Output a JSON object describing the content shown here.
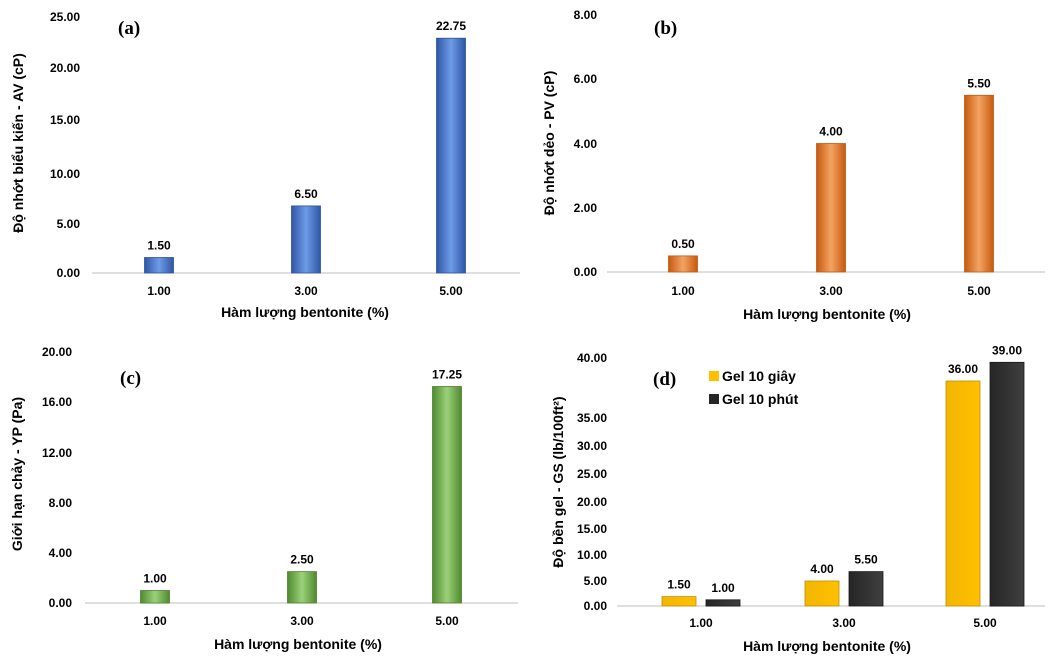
{
  "chart_data": [
    {
      "panel": "(a)",
      "type": "bar",
      "categories": [
        "1.00",
        "3.00",
        "5.00"
      ],
      "series": [
        {
          "values": [
            1.5,
            6.5,
            22.75
          ],
          "color": "#4472C4"
        }
      ],
      "data_labels": [
        "1.50",
        "6.50",
        "22.75"
      ],
      "xlabel": "Hàm lượng bentonite (%)",
      "ylabel": "Độ nhớt biểu kiến - AV (cP)",
      "ylim": [
        0,
        25
      ],
      "yticks": [
        "0.00",
        "5.00",
        "10.00",
        "15.00",
        "20.00",
        "25.00"
      ],
      "grid": false
    },
    {
      "panel": "(b)",
      "type": "bar",
      "categories": [
        "1.00",
        "3.00",
        "5.00"
      ],
      "series": [
        {
          "values": [
            0.5,
            4.0,
            5.5
          ],
          "color": "#ED7D31"
        }
      ],
      "data_labels": [
        "0.50",
        "4.00",
        "5.50"
      ],
      "xlabel": "Hàm lượng bentonite (%)",
      "ylabel": "Độ nhớt dẻo - PV (cP)",
      "ylim": [
        0,
        8
      ],
      "yticks": [
        "0.00",
        "2.00",
        "4.00",
        "6.00",
        "8.00"
      ],
      "grid": false
    },
    {
      "panel": "(c)",
      "type": "bar",
      "categories": [
        "1.00",
        "3.00",
        "5.00"
      ],
      "series": [
        {
          "values": [
            1.0,
            2.5,
            17.25
          ],
          "color": "#70AD47"
        }
      ],
      "data_labels": [
        "1.00",
        "2.50",
        "17.25"
      ],
      "xlabel": "Hàm lượng bentonite (%)",
      "ylabel": "Giới hạn chảy - YP (Pa)",
      "ylim": [
        0,
        20
      ],
      "yticks": [
        "0.00",
        "4.00",
        "8.00",
        "12.00",
        "16.00",
        "20.00"
      ],
      "grid": false
    },
    {
      "panel": "(d)",
      "type": "bar",
      "categories": [
        "1.00",
        "3.00",
        "5.00"
      ],
      "series": [
        {
          "name": "Gel 10 giây",
          "values": [
            1.5,
            4.0,
            36.0
          ],
          "color": "#FFC000"
        },
        {
          "name": "Gel 10 phút",
          "values": [
            1.0,
            5.5,
            39.0
          ],
          "color": "#404040"
        }
      ],
      "data_labels": [
        [
          "1.50",
          "4.00",
          "36.00"
        ],
        [
          "1.00",
          "5.50",
          "39.00"
        ]
      ],
      "xlabel": "Hàm lượng bentonite (%)",
      "ylabel": "Độ bền gel - GS (lb/100ft²)",
      "ylim": [
        0,
        40
      ],
      "yticks": [
        "0.00",
        "5.00",
        "10.00",
        "15.00",
        "20.00",
        "25.00",
        "30.00",
        "35.00",
        "40.00"
      ],
      "legend_position": "top-left",
      "grid": false
    }
  ]
}
